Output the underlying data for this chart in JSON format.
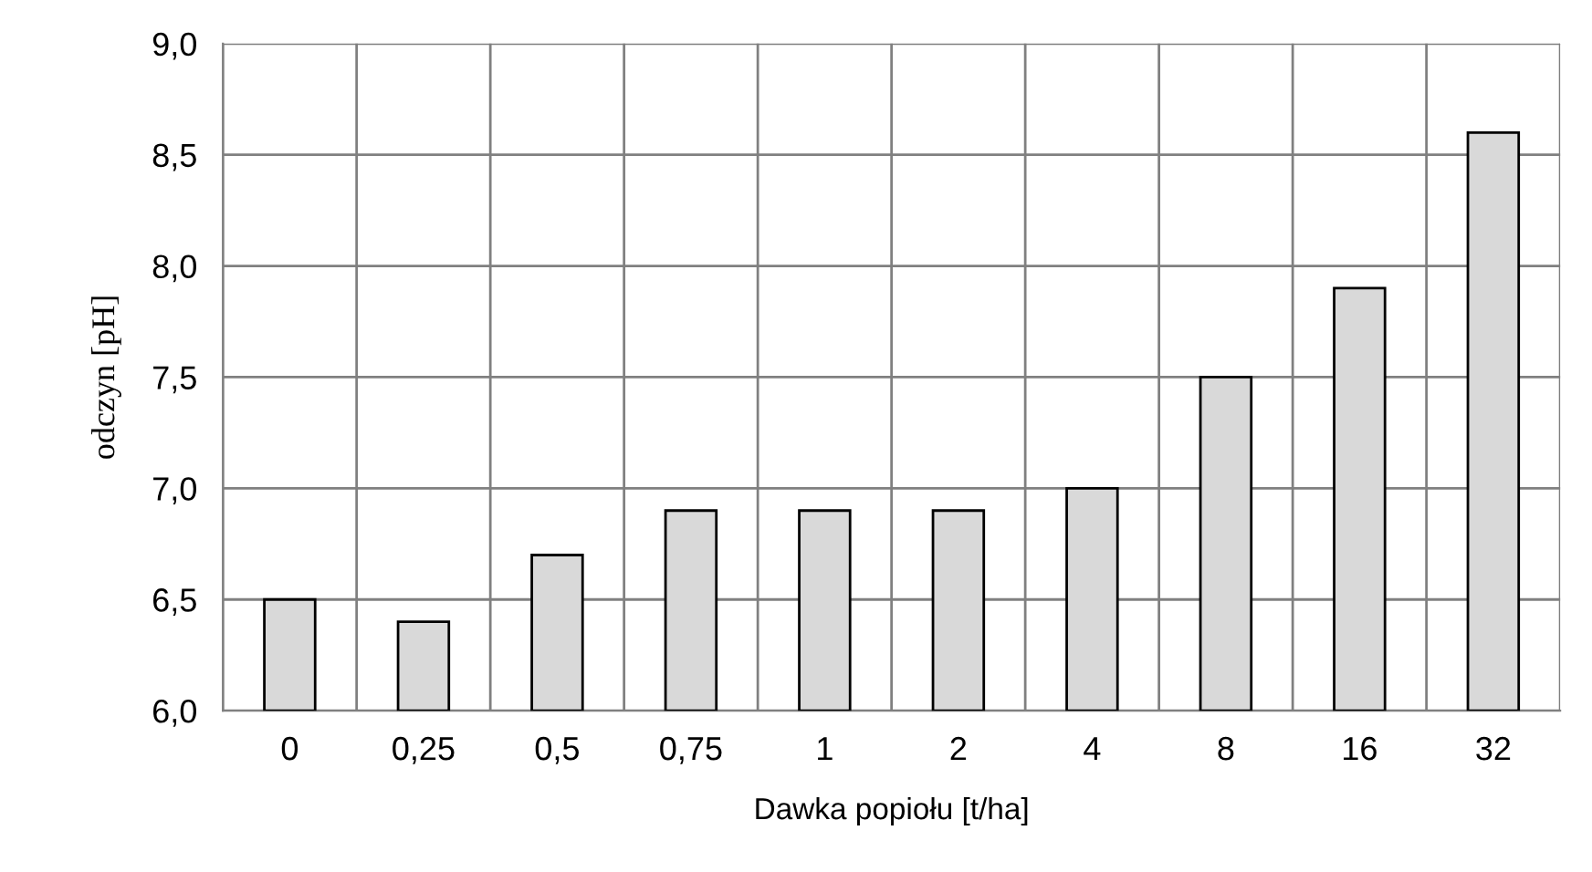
{
  "chart_data": {
    "type": "bar",
    "xlabel": "Dawka popiołu [t/ha]",
    "ylabel": "odczyn [pH]",
    "categories": [
      "0",
      "0,25",
      "0,5",
      "0,75",
      "1",
      "2",
      "4",
      "8",
      "16",
      "32"
    ],
    "values": [
      6.5,
      6.4,
      6.7,
      6.9,
      6.9,
      6.9,
      7.0,
      7.5,
      7.9,
      8.6
    ],
    "color": "#d9d9d9",
    "ylim": [
      6.0,
      9.0
    ],
    "yticks": [
      {
        "value": 6.0,
        "label": "6,0"
      },
      {
        "value": 6.5,
        "label": "6,5"
      },
      {
        "value": 7.0,
        "label": "7,0"
      },
      {
        "value": 7.5,
        "label": "7,5"
      },
      {
        "value": 8.0,
        "label": "8,0"
      },
      {
        "value": 8.5,
        "label": "8,5"
      },
      {
        "value": 9.0,
        "label": "9,0"
      }
    ],
    "grid": true
  }
}
